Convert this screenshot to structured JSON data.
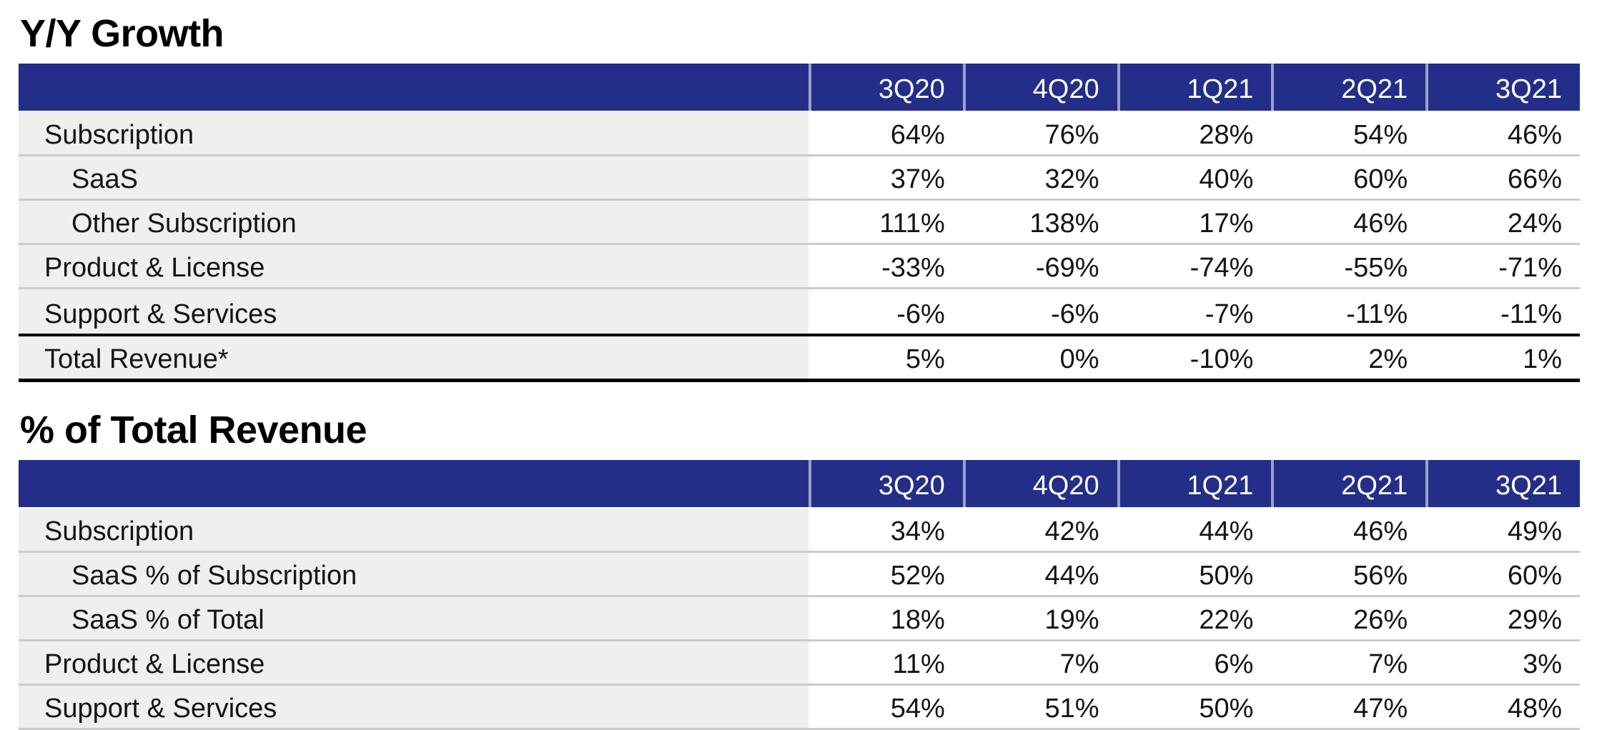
{
  "colors": {
    "header_bg": "#232E88",
    "header_text": "#FFFFFF",
    "label_column_bg": "#EFEFED",
    "row_divider": "#CBCBCB",
    "total_row_border": "#000000",
    "body_text": "#141414"
  },
  "tables": [
    {
      "title": "Y/Y Growth",
      "columns": [
        "3Q20",
        "4Q20",
        "1Q21",
        "2Q21",
        "3Q21"
      ],
      "rows": [
        {
          "label": "Subscription",
          "values": [
            "64%",
            "76%",
            "28%",
            "54%",
            "46%"
          ]
        },
        {
          "label": "SaaS",
          "values": [
            "37%",
            "32%",
            "40%",
            "60%",
            "66%"
          ]
        },
        {
          "label": "Other Subscription",
          "values": [
            "111%",
            "138%",
            "17%",
            "46%",
            "24%"
          ]
        },
        {
          "label": "Product & License",
          "values": [
            "-33%",
            "-69%",
            "-74%",
            "-55%",
            "-71%"
          ]
        },
        {
          "label": "Support & Services",
          "values": [
            "-6%",
            "-6%",
            "-7%",
            "-11%",
            "-11%"
          ]
        },
        {
          "label": "Total Revenue*",
          "values": [
            "5%",
            "0%",
            "-10%",
            "2%",
            "1%"
          ]
        }
      ]
    },
    {
      "title": "% of Total Revenue",
      "columns": [
        "3Q20",
        "4Q20",
        "1Q21",
        "2Q21",
        "3Q21"
      ],
      "rows": [
        {
          "label": "Subscription",
          "values": [
            "34%",
            "42%",
            "44%",
            "46%",
            "49%"
          ]
        },
        {
          "label": "SaaS % of Subscription",
          "values": [
            "52%",
            "44%",
            "50%",
            "56%",
            "60%"
          ]
        },
        {
          "label": "SaaS % of Total",
          "values": [
            "18%",
            "19%",
            "22%",
            "26%",
            "29%"
          ]
        },
        {
          "label": "Product & License",
          "values": [
            "11%",
            "7%",
            "6%",
            "7%",
            "3%"
          ]
        },
        {
          "label": "Support & Services",
          "values": [
            "54%",
            "51%",
            "50%",
            "47%",
            "48%"
          ]
        }
      ]
    }
  ]
}
